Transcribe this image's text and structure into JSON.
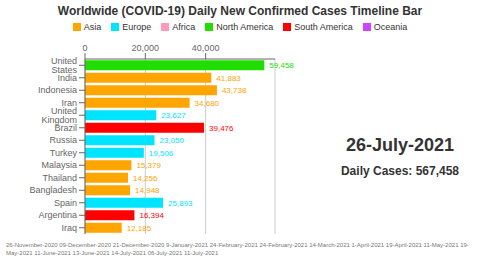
{
  "chart_data": {
    "type": "bar",
    "orientation": "horizontal",
    "title": "Worldwide (COVID-19) Daily New Confirmed Cases Timeline Bar",
    "categories": [
      "United States",
      "India",
      "Indonesia",
      "Iran",
      "United Kingdom",
      "Brazil",
      "Russia",
      "Turkey",
      "Malaysia",
      "Thailand",
      "Bangladesh",
      "Spain",
      "Argentina",
      "Iraq"
    ],
    "series": [
      {
        "name": "Asia",
        "color": "#FFA500",
        "values": [
          null,
          41883,
          43738,
          34680,
          null,
          null,
          null,
          null,
          15379,
          14256,
          14948,
          null,
          null,
          12185
        ],
        "value_labels": [
          null,
          "41,883",
          "43,738",
          "34,680",
          null,
          null,
          null,
          null,
          "15,379",
          "14,256",
          "14,948",
          null,
          null,
          "12,185"
        ]
      },
      {
        "name": "Europe",
        "color": "#00E5FF",
        "values": [
          null,
          null,
          null,
          null,
          23627,
          null,
          23050,
          19506,
          null,
          null,
          null,
          25893,
          null,
          null
        ],
        "value_labels": [
          null,
          null,
          null,
          null,
          "23,627",
          null,
          "23,050",
          "19,506",
          null,
          null,
          null,
          "25,893",
          null,
          null
        ]
      },
      {
        "name": "Africa",
        "color": "#FF99BB",
        "values": [
          null,
          null,
          null,
          null,
          null,
          null,
          null,
          null,
          null,
          null,
          null,
          null,
          null,
          null
        ],
        "value_labels": [
          null,
          null,
          null,
          null,
          null,
          null,
          null,
          null,
          null,
          null,
          null,
          null,
          null,
          null
        ]
      },
      {
        "name": "North America",
        "color": "#22DD00",
        "values": [
          59458,
          null,
          null,
          null,
          null,
          null,
          null,
          null,
          null,
          null,
          null,
          null,
          null,
          null
        ],
        "value_labels": [
          "59,458",
          null,
          null,
          null,
          null,
          null,
          null,
          null,
          null,
          null,
          null,
          null,
          null,
          null
        ]
      },
      {
        "name": "South America",
        "color": "#FF0000",
        "values": [
          null,
          null,
          null,
          null,
          null,
          39476,
          null,
          null,
          null,
          null,
          null,
          null,
          16394,
          null
        ],
        "value_labels": [
          null,
          null,
          null,
          null,
          null,
          "39,476",
          null,
          null,
          null,
          null,
          null,
          null,
          "16,394",
          null
        ]
      },
      {
        "name": "Oceania",
        "color": "#CC44FF",
        "values": [
          null,
          null,
          null,
          null,
          null,
          null,
          null,
          null,
          null,
          null,
          null,
          null,
          null,
          null
        ],
        "value_labels": [
          null,
          null,
          null,
          null,
          null,
          null,
          null,
          null,
          null,
          null,
          null,
          null,
          null,
          null
        ]
      }
    ],
    "xlim": [
      0,
      63000
    ],
    "xticks": [
      0,
      {
        "value": 20000,
        "label": "20,000"
      },
      {
        "value": 40000,
        "label": "40,000"
      }
    ],
    "grid": true,
    "data_labels": true,
    "annotations": [
      "26-July-2021",
      "Daily Cases: 567,458",
      "26-November-2020   09-December-2020   21-December-2020   9-January-2021   24-February-2021   24-February-2021   14-March-2021   1-April-2021   19-April-2021   11-May-2021   19-May-2021   11-June-2021   13-June-2021   14-July-2021   06-July-2021   11-July-2021"
    ]
  }
}
